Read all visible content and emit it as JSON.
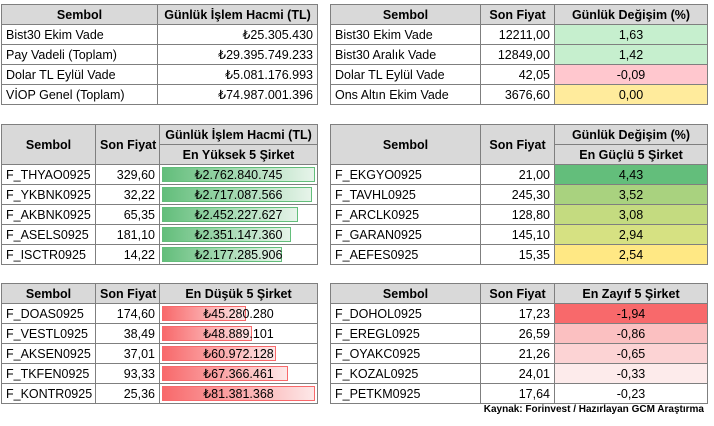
{
  "top_left": {
    "headers": [
      "Sembol",
      "Günlük İşlem Hacmi (TL)"
    ],
    "rows": [
      {
        "symbol": "Bist30 Ekim Vade",
        "volume": "₺25.305.430"
      },
      {
        "symbol": "Pay Vadeli (Toplam)",
        "volume": "₺29.395.749.233"
      },
      {
        "symbol": "Dolar TL Eylül Vade",
        "volume": "₺5.081.176.993"
      },
      {
        "symbol": "VİOP Genel (Toplam)",
        "volume": "₺74.987.001.396"
      }
    ]
  },
  "top_right": {
    "headers": [
      "Sembol",
      "Son Fiyat",
      "Günlük Değişim (%)"
    ],
    "rows": [
      {
        "symbol": "Bist30 Ekim Vade",
        "price": "12211,00",
        "change": "1,63",
        "color": "#c6efce"
      },
      {
        "symbol": "Bist30 Aralık Vade",
        "price": "12849,00",
        "change": "1,42",
        "color": "#c6efce"
      },
      {
        "symbol": "Dolar TL Eylül Vade",
        "price": "42,05",
        "change": "-0,09",
        "color": "#ffc7ce"
      },
      {
        "symbol": "Ons Altın Ekim Vade",
        "price": "3676,60",
        "change": "0,00",
        "color": "#ffeb9c"
      }
    ]
  },
  "volume_top5": {
    "headers": [
      "Sembol",
      "Son Fiyat",
      "Günlük İşlem Hacmi (TL)"
    ],
    "subheader": "En Yüksek 5 Şirket",
    "rows": [
      {
        "symbol": "F_THYAO0925",
        "price": "329,60",
        "volume": "₺2.762.840.745",
        "fill": 1.0
      },
      {
        "symbol": "F_YKBNK0925",
        "price": "32,22",
        "volume": "₺2.717.087.566",
        "fill": 0.98
      },
      {
        "symbol": "F_AKBNK0925",
        "price": "65,35",
        "volume": "₺2.452.227.627",
        "fill": 0.89
      },
      {
        "symbol": "F_ASELS0925",
        "price": "181,10",
        "volume": "₺2.351.147.360",
        "fill": 0.85
      },
      {
        "symbol": "F_ISCTR0925",
        "price": "14,22",
        "volume": "₺2.177.285.906",
        "fill": 0.79
      }
    ]
  },
  "change_top5": {
    "headers": [
      "Sembol",
      "Son Fiyat",
      "Günlük Değişim (%)"
    ],
    "subheader": "En Güçlü 5 Şirket",
    "rows": [
      {
        "symbol": "F_EKGYO0925",
        "price": "21,00",
        "change": "4,43",
        "color": "#63be7b"
      },
      {
        "symbol": "F_TAVHL0925",
        "price": "245,30",
        "change": "3,52",
        "color": "#a9d27f"
      },
      {
        "symbol": "F_ARCLK0925",
        "price": "128,80",
        "change": "3,08",
        "color": "#c4db80"
      },
      {
        "symbol": "F_GARAN0925",
        "price": "145,10",
        "change": "2,94",
        "color": "#d6e182"
      },
      {
        "symbol": "F_AEFES0925",
        "price": "15,35",
        "change": "2,54",
        "color": "#ffe884"
      }
    ]
  },
  "volume_bottom5": {
    "headers": [
      "Sembol",
      "Son Fiyat",
      "En Düşük 5 Şirket"
    ],
    "rows": [
      {
        "symbol": "F_DOAS0925",
        "price": "174,60",
        "volume": "₺45.280.280",
        "fill": 0.56
      },
      {
        "symbol": "F_VESTL0925",
        "price": "38,49",
        "volume": "₺48.889.101",
        "fill": 0.6
      },
      {
        "symbol": "F_AKSEN0925",
        "price": "37,01",
        "volume": "₺60.972.128",
        "fill": 0.75
      },
      {
        "symbol": "F_TKFEN0925",
        "price": "93,33",
        "volume": "₺67.366.461",
        "fill": 0.83
      },
      {
        "symbol": "F_KONTR0925",
        "price": "25,36",
        "volume": "₺81.381.368",
        "fill": 1.0
      }
    ]
  },
  "change_bottom5": {
    "headers": [
      "Sembol",
      "Son Fiyat",
      "En Zayıf 5 Şirket"
    ],
    "rows": [
      {
        "symbol": "F_DOHOL0925",
        "price": "17,23",
        "change": "-1,94",
        "color": "#f8696b"
      },
      {
        "symbol": "F_EREGL0925",
        "price": "26,59",
        "change": "-0,86",
        "color": "#fbc0c1"
      },
      {
        "symbol": "F_OYAKC0925",
        "price": "21,26",
        "change": "-0,65",
        "color": "#fcd3d4"
      },
      {
        "symbol": "F_KOZAL0925",
        "price": "24,01",
        "change": "-0,33",
        "color": "#fdebeb"
      },
      {
        "symbol": "F_PETKM0925",
        "price": "17,64",
        "change": "-0,23",
        "color": "#ffffff"
      }
    ]
  },
  "source": "Kaynak: Forinvest / Hazırlayan GCM Araştırma"
}
